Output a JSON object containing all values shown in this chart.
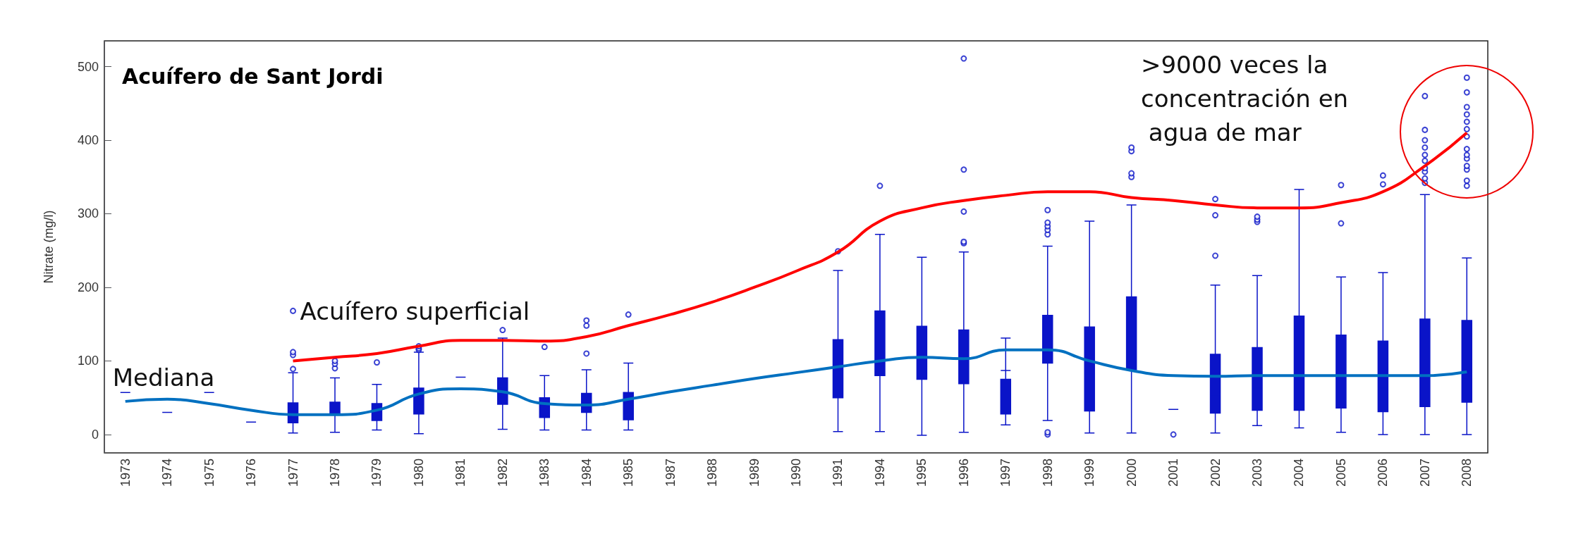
{
  "chart_data": {
    "type": "box",
    "title": "Acuífero de Sant Jordi",
    "ylabel": "Nitrate (mg/l)",
    "categories": [
      "1973",
      "1974",
      "1975",
      "1976",
      "1977",
      "1978",
      "1979",
      "1980",
      "1981",
      "1982",
      "1983",
      "1984",
      "1985",
      "1987",
      "1988",
      "1989",
      "1990",
      "1991",
      "1994",
      "1995",
      "1996",
      "1997",
      "1998",
      "1999",
      "2000",
      "2001",
      "2002",
      "2003",
      "2004",
      "2005",
      "2006",
      "2007",
      "2008"
    ],
    "color": "#0a14c8",
    "boxes": [
      {
        "low": 57,
        "q1": 57,
        "median": 57,
        "q3": 57,
        "high": 57
      },
      {
        "low": 30,
        "q1": 30,
        "median": 30,
        "q3": 30,
        "high": 30
      },
      {
        "low": 57,
        "q1": 57,
        "median": 57,
        "q3": 57,
        "high": 57
      },
      {
        "low": 17,
        "q1": 17,
        "median": 17,
        "q3": 17,
        "high": 17
      },
      {
        "low": 2,
        "q1": 16,
        "median": 30,
        "q3": 43,
        "high": 84,
        "outliers": [
          89,
          108,
          112,
          168
        ]
      },
      {
        "low": 3,
        "q1": 28,
        "median": 28,
        "q3": 44,
        "high": 77,
        "outliers": [
          90,
          96,
          100
        ]
      },
      {
        "low": 6,
        "q1": 19,
        "median": 30,
        "q3": 42,
        "high": 68,
        "outliers": [
          98
        ]
      },
      {
        "low": 1,
        "q1": 28,
        "median": 41,
        "q3": 63,
        "high": 112,
        "outliers": [
          115,
          117,
          120
        ]
      },
      {
        "low": 78,
        "q1": 78,
        "median": 78,
        "q3": 78,
        "high": 78
      },
      {
        "low": 7,
        "q1": 41,
        "median": 63,
        "q3": 77,
        "high": 131,
        "outliers": [
          142
        ]
      },
      {
        "low": 6,
        "q1": 23,
        "median": 39,
        "q3": 50,
        "high": 80,
        "outliers": [
          119
        ]
      },
      {
        "low": 6,
        "q1": 30,
        "median": 42,
        "q3": 56,
        "high": 88,
        "outliers": [
          110,
          148,
          155
        ]
      },
      {
        "low": 6,
        "q1": 20,
        "median": 43,
        "q3": 57,
        "high": 97,
        "outliers": [
          163
        ]
      },
      null,
      null,
      null,
      null,
      {
        "low": 4,
        "q1": 50,
        "median": 87,
        "q3": 129,
        "high": 223,
        "outliers": [
          249
        ]
      },
      {
        "low": 4,
        "q1": 80,
        "median": 97,
        "q3": 168,
        "high": 272,
        "outliers": [
          338
        ]
      },
      {
        "low": -1,
        "q1": 75,
        "median": 105,
        "q3": 147,
        "high": 241
      },
      {
        "low": 3,
        "q1": 69,
        "median": 106,
        "q3": 142,
        "high": 248,
        "outliers": [
          260,
          262,
          303,
          360,
          511
        ]
      },
      {
        "low": 13,
        "q1": 28,
        "median": 87,
        "q3": 75,
        "high": 131
      },
      {
        "low": 19,
        "q1": 97,
        "median": 138,
        "q3": 162,
        "high": 256,
        "outliers": [
          0,
          3,
          272,
          278,
          283,
          288,
          305
        ]
      },
      {
        "low": 2,
        "q1": 32,
        "median": 106,
        "q3": 146,
        "high": 290
      },
      {
        "low": 2,
        "q1": 88,
        "median": 133,
        "q3": 187,
        "high": 312,
        "outliers": [
          350,
          355,
          385,
          390
        ]
      },
      {
        "low": 34,
        "q1": 34,
        "median": 34,
        "q3": 34,
        "high": 34,
        "outliers": [
          0
        ]
      },
      {
        "low": 2,
        "q1": 29,
        "median": 54,
        "q3": 109,
        "high": 203,
        "outliers": [
          243,
          298,
          320
        ]
      },
      {
        "low": 12,
        "q1": 33,
        "median": 63,
        "q3": 118,
        "high": 216,
        "outliers": [
          289,
          292,
          296
        ]
      },
      {
        "low": 9,
        "q1": 33,
        "median": 80,
        "q3": 161,
        "high": 333
      },
      {
        "low": 3,
        "q1": 36,
        "median": 73,
        "q3": 135,
        "high": 214,
        "outliers": [
          287,
          339
        ]
      },
      {
        "low": 0,
        "q1": 31,
        "median": 63,
        "q3": 127,
        "high": 220,
        "outliers": [
          340,
          352
        ]
      },
      {
        "low": 0,
        "q1": 38,
        "median": 83,
        "q3": 157,
        "high": 326,
        "outliers": [
          342,
          348,
          357,
          362,
          372,
          380,
          390,
          400,
          414,
          460
        ]
      },
      {
        "low": 0,
        "q1": 44,
        "median": 82,
        "q3": 155,
        "high": 240,
        "outliers": [
          338,
          345,
          360,
          365,
          375,
          380,
          388,
          405,
          415,
          425,
          435,
          445,
          465,
          485
        ]
      }
    ],
    "series": [
      {
        "type": "line",
        "name": "Mediana",
        "color": "#0070c0",
        "values": [
          45,
          48,
          42,
          33,
          27,
          27,
          33,
          55,
          62,
          58,
          42,
          40,
          48,
          58,
          67,
          76,
          84,
          92,
          100,
          105,
          103,
          115,
          115,
          100,
          87,
          80,
          79,
          80,
          80,
          80,
          80,
          80,
          85
        ]
      },
      {
        "type": "line",
        "name": "Acuífero superficial",
        "color": "#ff0000",
        "values": [
          null,
          null,
          null,
          null,
          100,
          105,
          110,
          120,
          128,
          128,
          127,
          133,
          148,
          163,
          180,
          200,
          222,
          248,
          290,
          308,
          318,
          325,
          330,
          330,
          322,
          318,
          312,
          308,
          308,
          315,
          330,
          365,
          410
        ]
      }
    ],
    "annotations": [
      ">9000 veces la\nconcentración en\n agua de mar"
    ],
    "ylim": [
      -25,
      535
    ],
    "yticks": [
      0,
      100,
      200,
      300,
      400,
      500
    ],
    "grid": false,
    "legend": false
  }
}
